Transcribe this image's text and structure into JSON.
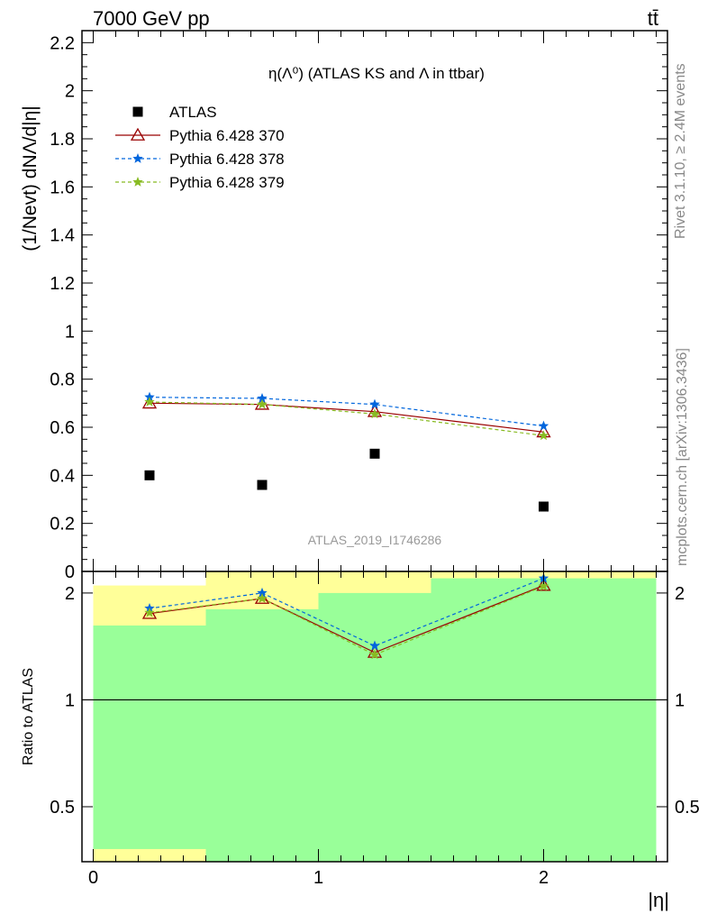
{
  "header": {
    "energy_label": "7000 GeV pp",
    "process_label": "tt̄"
  },
  "side_text": {
    "rivet": "Rivet 3.1.10, ≥ 2.4M events",
    "mcplots": "mcplots.cern.ch [arXiv:1306.3436]"
  },
  "chart_data": [
    {
      "type": "scatter",
      "panel": "main",
      "title": "η(Λ⁰) (ATLAS KS and Λ in ttbar)",
      "watermark": "ATLAS_2019_I1746286",
      "ylabel": "(1/Nevt) dNΛ/d|η|",
      "ylim": [
        0,
        2.25
      ],
      "xlim": [
        -0.05,
        2.55
      ],
      "yticks": [
        "0",
        "0.2",
        "0.4",
        "0.6",
        "0.8",
        "1",
        "1.2",
        "1.4",
        "1.6",
        "1.8",
        "2",
        "2.2"
      ],
      "legend_position": "top-left",
      "series": [
        {
          "name": "ATLAS",
          "color": "#000000",
          "marker": "square",
          "line": "none",
          "x": [
            0.25,
            0.75,
            1.25,
            2.0
          ],
          "y": [
            0.4,
            0.36,
            0.49,
            0.27
          ]
        },
        {
          "name": "Pythia 6.428 370",
          "color": "#990000",
          "marker": "open-triangle",
          "line": "solid",
          "x": [
            0.25,
            0.75,
            1.25,
            2.0
          ],
          "y": [
            0.7,
            0.695,
            0.665,
            0.58
          ]
        },
        {
          "name": "Pythia 6.428 378",
          "color": "#0066dd",
          "marker": "star",
          "line": "dashed",
          "x": [
            0.25,
            0.75,
            1.25,
            2.0
          ],
          "y": [
            0.725,
            0.72,
            0.695,
            0.605
          ]
        },
        {
          "name": "Pythia 6.428 379",
          "color": "#88bb22",
          "marker": "star",
          "line": "dashed",
          "x": [
            0.25,
            0.75,
            1.25,
            2.0
          ],
          "y": [
            0.705,
            0.695,
            0.655,
            0.565
          ]
        }
      ]
    },
    {
      "type": "line",
      "panel": "ratio",
      "ylabel": "Ratio to ATLAS",
      "xlabel": "|η|",
      "scale": "log",
      "ylim": [
        0.35,
        2.3
      ],
      "xlim": [
        -0.05,
        2.55
      ],
      "xticks": [
        "0",
        "1",
        "2"
      ],
      "yticks": [
        "0.5",
        "1",
        "2"
      ],
      "uncertainty_bands": [
        {
          "x_range": [
            0.0,
            0.5
          ],
          "green": [
            0.38,
            1.62
          ],
          "yellow": [
            0.35,
            2.1
          ]
        },
        {
          "x_range": [
            0.5,
            1.0
          ],
          "green": [
            0.35,
            1.8
          ],
          "yellow": [
            0.35,
            2.3
          ]
        },
        {
          "x_range": [
            1.0,
            1.5
          ],
          "green": [
            0.35,
            2.0
          ],
          "yellow": [
            0.35,
            2.3
          ]
        },
        {
          "x_range": [
            1.5,
            2.5
          ],
          "green": [
            0.35,
            2.2
          ],
          "yellow": [
            0.35,
            2.3
          ]
        }
      ],
      "series": [
        {
          "name": "Pythia 6.428 370",
          "color": "#990000",
          "marker": "open-triangle",
          "line": "solid",
          "x": [
            0.25,
            0.75,
            1.25,
            2.0
          ],
          "y": [
            1.75,
            1.93,
            1.36,
            2.1
          ]
        },
        {
          "name": "Pythia 6.428 378",
          "color": "#0066dd",
          "marker": "star",
          "line": "dashed",
          "x": [
            0.25,
            0.75,
            1.25,
            2.0
          ],
          "y": [
            1.81,
            2.0,
            1.42,
            2.2
          ]
        },
        {
          "name": "Pythia 6.428 379",
          "color": "#88bb22",
          "marker": "star",
          "line": "dashed",
          "x": [
            0.25,
            0.75,
            1.25,
            2.0
          ],
          "y": [
            1.76,
            1.93,
            1.34,
            2.09
          ]
        }
      ]
    }
  ]
}
